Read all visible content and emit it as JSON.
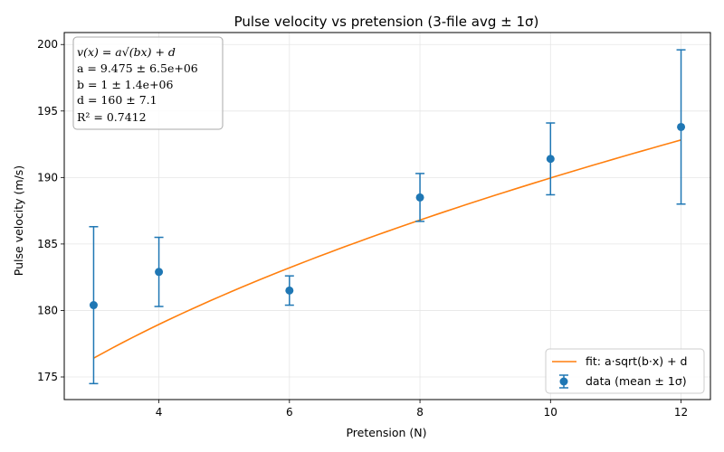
{
  "chart_data": {
    "type": "scatter",
    "title": "Pulse velocity vs pretension (3-file avg ± 1σ)",
    "xlabel": "Pretension (N)",
    "ylabel": "Pulse velocity (m/s)",
    "xlim": [
      2.55,
      12.45
    ],
    "ylim": [
      173.3,
      200.9
    ],
    "xticks": [
      4,
      6,
      8,
      10,
      12
    ],
    "yticks": [
      175,
      180,
      185,
      190,
      195,
      200
    ],
    "grid": true,
    "legend_position": "bottom-right",
    "series": [
      {
        "name": "data (mean ± 1σ)",
        "kind": "errorbar",
        "color": "#1f77b4",
        "x": [
          3,
          4,
          6,
          8,
          10,
          12
        ],
        "y": [
          180.4,
          182.9,
          181.5,
          188.5,
          191.4,
          193.8
        ],
        "err": [
          5.9,
          2.6,
          1.1,
          1.8,
          2.7,
          5.8
        ]
      },
      {
        "name": "fit: a·sqrt(b·x) + d",
        "kind": "line",
        "color": "#ff7f0e",
        "params": {
          "a": 9.475,
          "b": 1,
          "d": 160
        },
        "x_range": [
          3,
          12
        ]
      }
    ],
    "annotation": {
      "lines": [
        "v(x) = a√(bx) + d",
        "a = 9.475  ±  6.5e+06",
        "b = 1  ±  1.4e+06",
        "d = 160  ±  7.1",
        "R² = 0.7412"
      ]
    }
  }
}
